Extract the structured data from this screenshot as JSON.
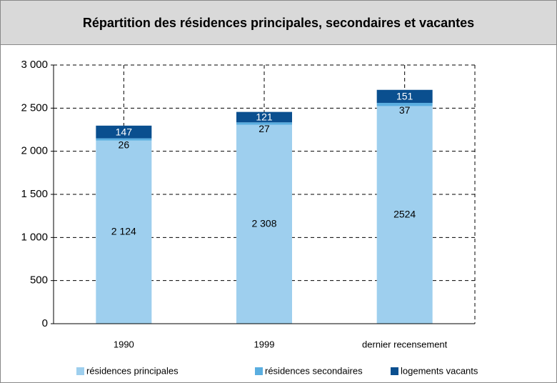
{
  "chart_data": {
    "type": "stacked-bar",
    "title": "Répartition des résidences principales, secondaires et vacantes",
    "categories": [
      "1990",
      "1999",
      "dernier recensement"
    ],
    "series": [
      {
        "name": "résidences principales",
        "color": "#9ecfee",
        "values": [
          2124,
          2308,
          2524
        ],
        "value_labels": [
          "2 124",
          "2 308",
          "2524"
        ]
      },
      {
        "name": "résidences secondaires",
        "color": "#5aaee0",
        "values": [
          26,
          27,
          37
        ]
      },
      {
        "name": "logements vacants",
        "color": "#0a4f8f",
        "values": [
          147,
          121,
          151
        ]
      }
    ],
    "ylim": [
      0,
      3000
    ],
    "yticks": [
      0,
      500,
      {
        "value": 1000,
        "label": "1 000"
      },
      {
        "value": 1500,
        "label": "1 500"
      },
      {
        "value": 2000,
        "label": "2 000"
      },
      {
        "value": 2500,
        "label": "2 500"
      },
      {
        "value": 3000,
        "label": "3 000"
      }
    ],
    "grid": true
  }
}
